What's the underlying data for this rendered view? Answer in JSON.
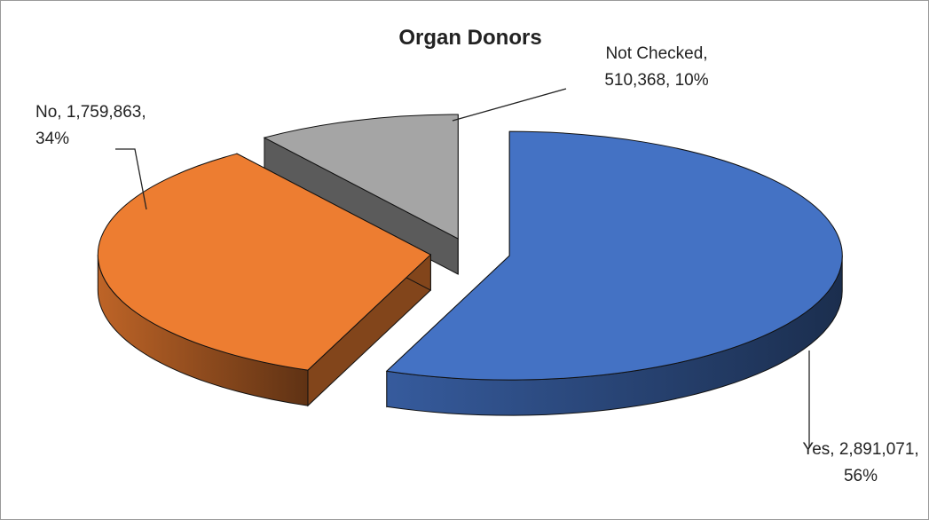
{
  "chart_data": {
    "type": "pie",
    "title": "Organ Donors",
    "categories": [
      "Yes",
      "No",
      "Not Checked"
    ],
    "values": [
      2891071,
      1759863,
      510368
    ],
    "value_labels": [
      [
        "Yes, 2,891,071,",
        "56%"
      ],
      [
        "No, 1,759,863,",
        "34%"
      ],
      [
        "Not Checked,",
        "510,368, 10%"
      ]
    ],
    "colors": [
      "#4472c4",
      "#ed7d31",
      "#a5a5a5"
    ]
  }
}
